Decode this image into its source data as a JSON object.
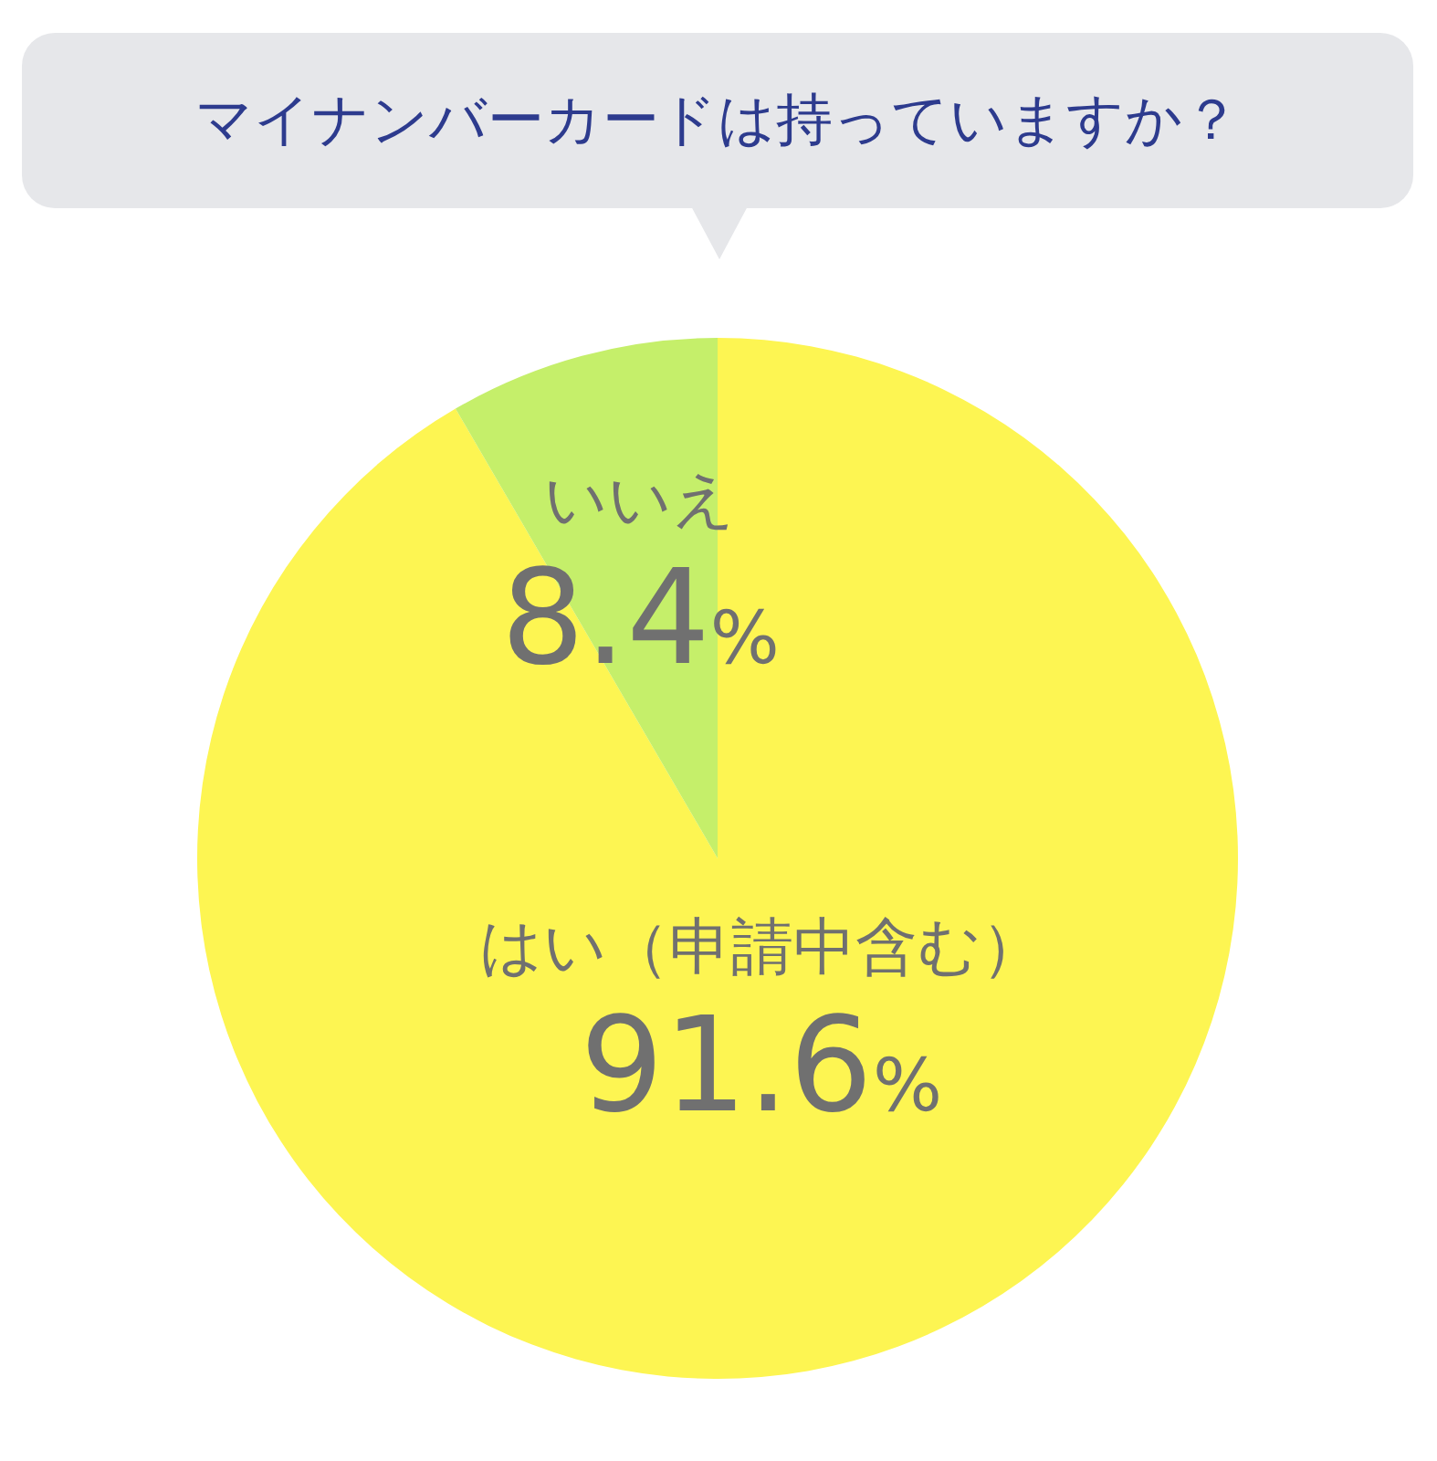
{
  "chart_data": {
    "type": "pie",
    "title": "マイナンバーカードは持っていますか？",
    "categories": [
      "はい（申請中含む）",
      "いいえ"
    ],
    "values": [
      91.6,
      8.4
    ],
    "colors": [
      "#fdf552",
      "#c5ef6a"
    ],
    "value_labels": [
      "91.6%",
      "8.4%"
    ],
    "legend": false
  }
}
